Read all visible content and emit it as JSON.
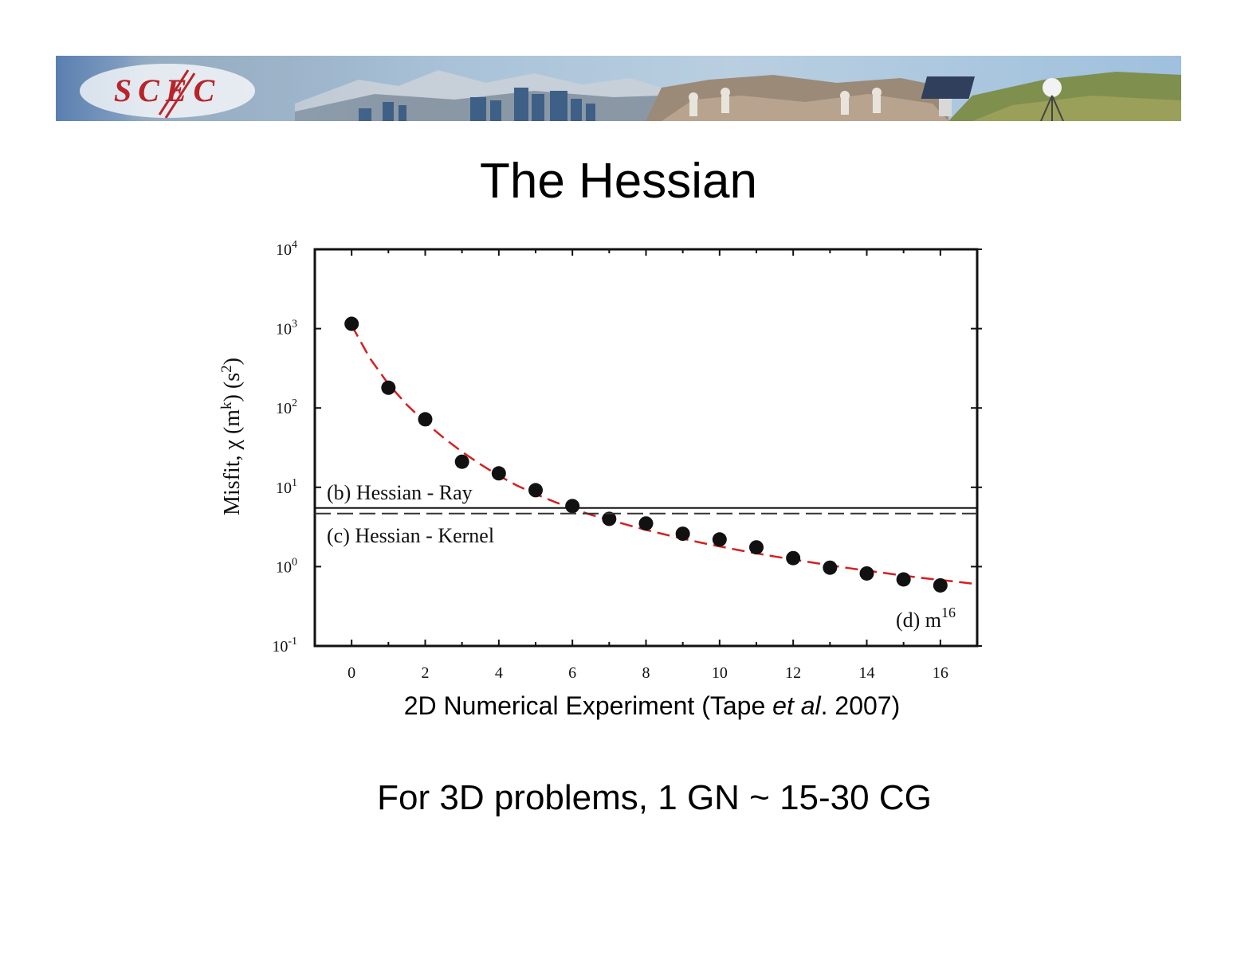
{
  "header": {
    "logo_text": "SCEC"
  },
  "slide": {
    "title": "The Hessian",
    "caption_main": "2D Numerical Experiment (Tape ",
    "caption_italic": "et al",
    "caption_end": ". 2007)",
    "note": "For 3D problems, 1 GN ~ 15-30 CG"
  },
  "colors": {
    "fit_line": "#d42020",
    "points": "#111111"
  },
  "chart_data": {
    "type": "scatter",
    "yscale": "log",
    "xlim": [
      -1,
      17
    ],
    "ylim": [
      0.1,
      10000
    ],
    "x_ticks": [
      0,
      2,
      4,
      6,
      8,
      10,
      12,
      14,
      16
    ],
    "y_ticks": [
      {
        "value": 0.1,
        "base": "10",
        "exp": "-1"
      },
      {
        "value": 1,
        "base": "10",
        "exp": "0"
      },
      {
        "value": 10,
        "base": "10",
        "exp": "1"
      },
      {
        "value": 100,
        "base": "10",
        "exp": "2"
      },
      {
        "value": 1000,
        "base": "10",
        "exp": "3"
      },
      {
        "value": 10000,
        "base": "10",
        "exp": "4"
      }
    ],
    "ylabel_parts": [
      "Misfit,  χ (m",
      "k",
      ")  (s",
      "2",
      ")"
    ],
    "x": [
      0,
      1,
      2,
      3,
      4,
      5,
      6,
      7,
      8,
      9,
      10,
      11,
      12,
      13,
      14,
      15,
      16
    ],
    "y": [
      1150,
      180,
      72,
      21,
      15,
      9.2,
      5.8,
      4.0,
      3.5,
      2.6,
      2.2,
      1.75,
      1.28,
      0.97,
      0.82,
      0.69,
      0.58
    ],
    "fit_curve": {
      "style": "dashed",
      "x": [
        0,
        0.5,
        1,
        1.5,
        2,
        2.5,
        3,
        3.5,
        4,
        4.5,
        5,
        5.5,
        6,
        6.5,
        7,
        7.5,
        8,
        8.5,
        9,
        9.5,
        10,
        10.5,
        11,
        11.5,
        12,
        12.5,
        13,
        13.5,
        14,
        14.5,
        15,
        15.5,
        16,
        16.5,
        17
      ],
      "y": [
        1100,
        420,
        200,
        110,
        66,
        42,
        28,
        19.5,
        14,
        10.5,
        8.2,
        6.6,
        5.4,
        4.5,
        3.9,
        3.35,
        2.9,
        2.55,
        2.25,
        2.0,
        1.8,
        1.62,
        1.47,
        1.34,
        1.23,
        1.13,
        1.04,
        0.96,
        0.89,
        0.83,
        0.77,
        0.72,
        0.68,
        0.64,
        0.6
      ]
    },
    "separator_y": 5.0,
    "annotations": [
      {
        "text": "(b) Hessian - Ray"
      },
      {
        "text": "(c) Hessian - Kernel"
      },
      {
        "text": "(d)  m",
        "sup": "16"
      }
    ]
  }
}
